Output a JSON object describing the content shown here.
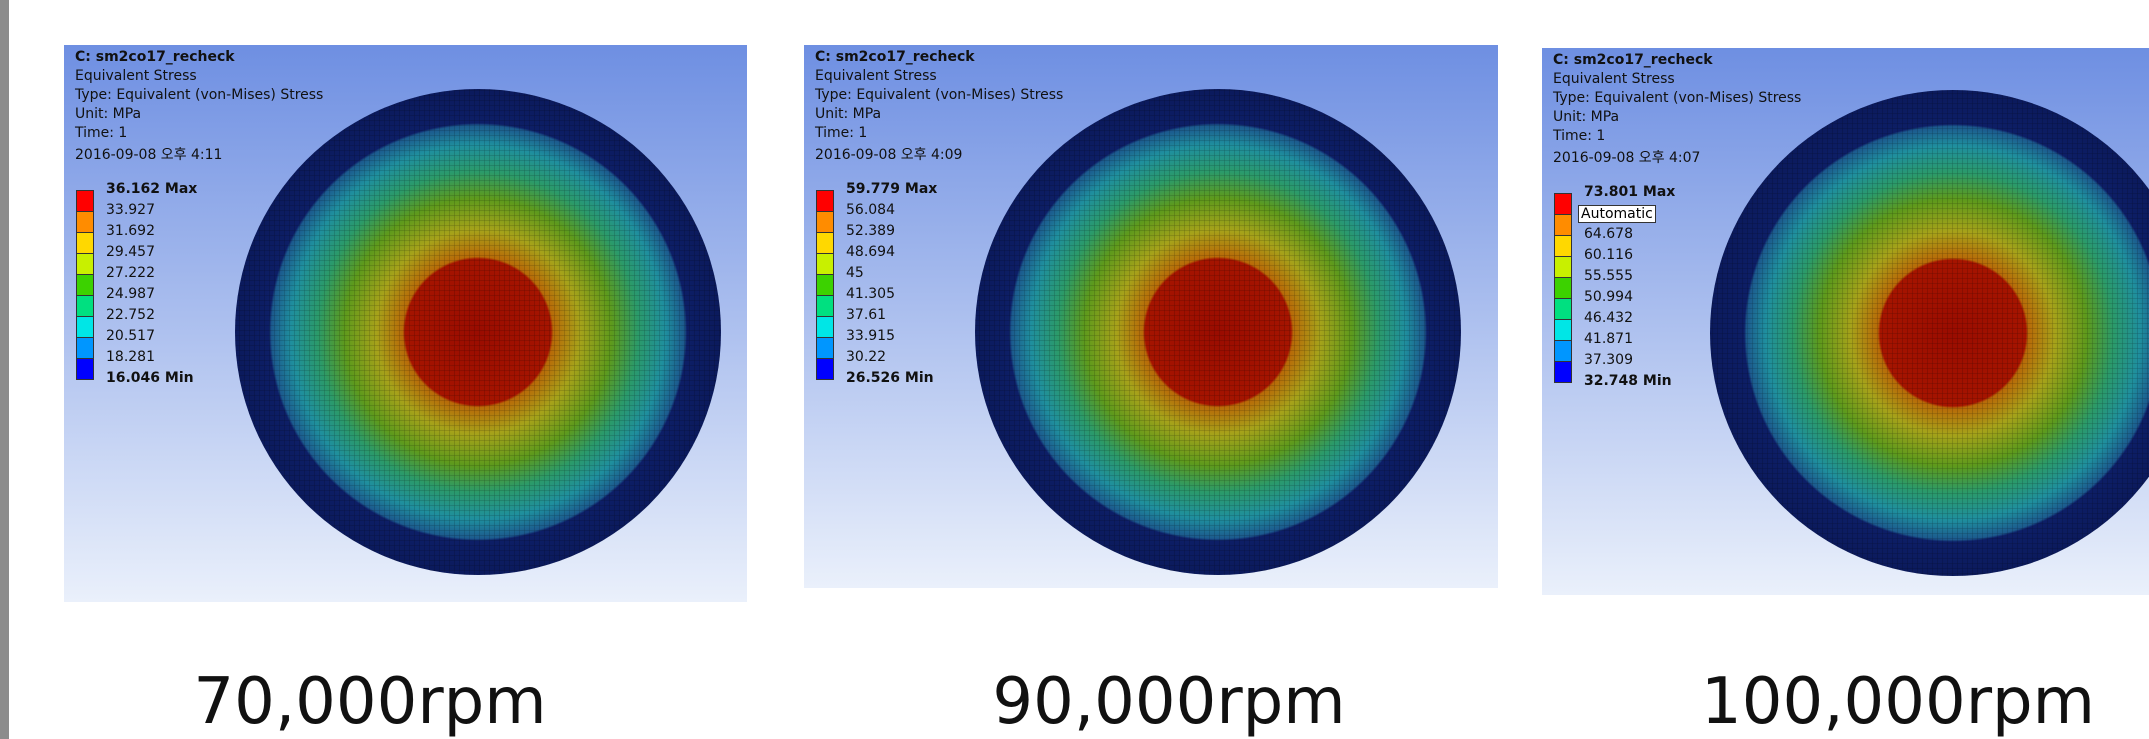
{
  "panels": [
    {
      "header": [
        "C: sm2co17_recheck",
        "Equivalent Stress",
        "Type: Equivalent (von-Mises) Stress",
        "Unit: MPa",
        "Time: 1",
        "2016-09-08 오후 4:11"
      ],
      "legend": [
        "36.162 Max",
        "33.927",
        "31.692",
        "29.457",
        "27.222",
        "24.987",
        "22.752",
        "20.517",
        "18.281",
        "16.046 Min"
      ],
      "caption": "70,000rpm"
    },
    {
      "header": [
        "C: sm2co17_recheck",
        "Equivalent Stress",
        "Type: Equivalent (von-Mises) Stress",
        "Unit: MPa",
        "Time: 1",
        "2016-09-08 오후 4:09"
      ],
      "legend": [
        "59.779 Max",
        "56.084",
        "52.389",
        "48.694",
        "45",
        "41.305",
        "37.61",
        "33.915",
        "30.22",
        "26.526 Min"
      ],
      "caption": "90,000rpm"
    },
    {
      "header": [
        "C: sm2co17_recheck",
        "Equivalent Stress",
        "Type: Equivalent (von-Mises) Stress",
        "Unit: MPa",
        "Time: 1",
        "2016-09-08 오후 4:07"
      ],
      "legend": [
        "73.801 Max",
        null,
        "64.678",
        "60.116",
        "55.555",
        "50.994",
        "46.432",
        "41.871",
        "37.309",
        "32.748 Min"
      ],
      "tooltip": "Automatic",
      "caption": "100,000rpm"
    }
  ]
}
